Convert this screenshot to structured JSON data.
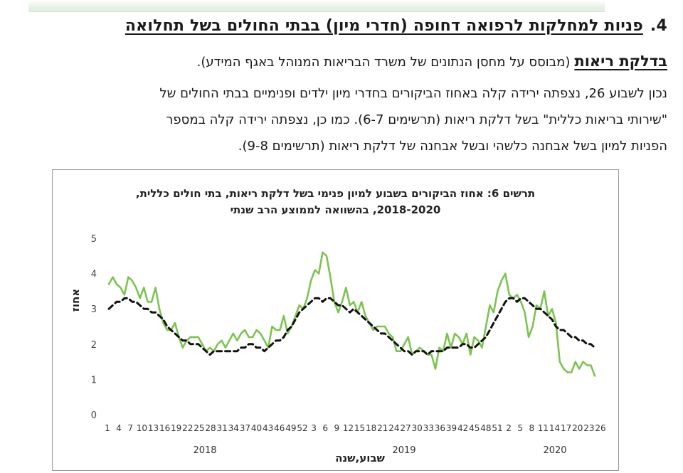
{
  "document": {
    "section_number": "4.",
    "section_title": "פניות למחלקות לרפואה דחופה (חדרי מיון) בבתי החולים בשל תחלואה",
    "section_title_cont": "בדלקת ריאות",
    "source_note": "(מבוסס על מחסן הנתונים של משרד הבריאות המנוהל באגף המידע).",
    "paragraph_lines": [
      "נכון לשבוע 26, נצפתה ירידה קלה באחוז הביקורים בחדרי מיון ילדים ופנימיים בבתי החולים של",
      "\"שירותי בריאות כללית\" בשל דלקת ריאות (תרשימים 6-7). כמו כן, נצפתה ירידה קלה במספר",
      "הפניות למיון בשל אבחנה כלשהי ובשל אבחנה של  דלקת ריאות (תרשימים  9-8)."
    ]
  },
  "chart_data": {
    "type": "line",
    "title_lines": [
      "תרשים 6: אחוז הביקורים בשבוע למיון פנימי בשל דלקת ריאות, בתי חולים כללית,",
      "2018-2020, בהשוואה לממוצע הרב שנתי"
    ],
    "xlabel": "שבוע,שנה",
    "ylabel": "אחוז",
    "ylim": [
      0,
      5
    ],
    "yticks": [
      0,
      1,
      2,
      3,
      4,
      5
    ],
    "grid": false,
    "x_tick_labels": [
      "1",
      "4",
      "7",
      "10",
      "13",
      "16",
      "19",
      "22",
      "25",
      "28",
      "31",
      "34",
      "37",
      "40",
      "43",
      "46",
      "49",
      "52",
      "3",
      "6",
      "9",
      "12",
      "15",
      "18",
      "21",
      "24",
      "27",
      "30",
      "33",
      "36",
      "39",
      "42",
      "45",
      "48",
      "51",
      "2",
      "5",
      "8",
      "11",
      "14",
      "17",
      "20",
      "23",
      "26"
    ],
    "year_labels": [
      "2018",
      "2019",
      "2020"
    ],
    "series": [
      {
        "color": "#7cc44f",
        "style": "solid",
        "values": [
          3.7,
          3.9,
          3.7,
          3.6,
          3.4,
          3.9,
          3.8,
          3.6,
          3.3,
          3.6,
          3.2,
          3.2,
          3.6,
          3.0,
          2.6,
          2.4,
          2.4,
          2.6,
          2.2,
          1.9,
          2.1,
          2.2,
          2.2,
          2.2,
          2.0,
          1.8,
          1.9,
          1.8,
          2.0,
          2.1,
          1.9,
          2.1,
          2.3,
          2.1,
          2.3,
          2.4,
          2.2,
          2.2,
          2.4,
          2.3,
          2.1,
          1.9,
          2.5,
          2.4,
          2.4,
          2.8,
          2.3,
          2.5,
          2.8,
          3.1,
          3.0,
          3.3,
          3.8,
          4.1,
          4.0,
          4.6,
          4.5,
          3.9,
          3.2,
          2.9,
          3.2,
          3.6,
          3.1,
          3.2,
          2.9,
          3.2,
          2.8,
          2.6,
          2.4,
          2.5,
          2.5,
          2.5,
          2.3,
          2.2,
          1.8,
          1.8,
          2.0,
          2.2,
          1.7,
          1.8,
          1.9,
          1.8,
          1.7,
          1.7,
          1.3,
          1.9,
          1.8,
          2.3,
          1.9,
          2.3,
          2.2,
          2.0,
          2.3,
          1.7,
          2.2,
          2.1,
          1.9,
          2.5,
          3.1,
          2.9,
          3.5,
          3.8,
          4.0,
          3.4,
          3.3,
          3.4,
          3.2,
          2.9,
          2.2,
          2.5,
          3.1,
          3.0,
          3.5,
          2.8,
          3.0,
          2.6,
          1.5,
          1.3,
          1.2,
          1.2,
          1.5,
          1.3,
          1.5,
          1.4,
          1.4,
          1.1
        ]
      },
      {
        "color": "#111111",
        "style": "dashed",
        "values": [
          3.0,
          3.1,
          3.2,
          3.2,
          3.3,
          3.3,
          3.2,
          3.2,
          3.1,
          3.0,
          3.0,
          2.9,
          2.9,
          2.8,
          2.7,
          2.5,
          2.4,
          2.3,
          2.2,
          2.1,
          2.1,
          2.0,
          2.0,
          2.0,
          1.9,
          1.8,
          1.7,
          1.8,
          1.8,
          1.8,
          1.8,
          1.8,
          1.8,
          1.8,
          1.9,
          1.9,
          2.0,
          2.0,
          1.9,
          1.9,
          1.8,
          1.9,
          2.0,
          2.1,
          2.1,
          2.2,
          2.4,
          2.5,
          2.7,
          2.9,
          3.0,
          3.1,
          3.2,
          3.3,
          3.3,
          3.2,
          3.3,
          3.3,
          3.2,
          3.1,
          3.1,
          3.0,
          2.9,
          3.0,
          2.9,
          2.8,
          2.7,
          2.6,
          2.5,
          2.4,
          2.3,
          2.3,
          2.2,
          2.1,
          2.0,
          1.9,
          1.8,
          1.8,
          1.7,
          1.8,
          1.8,
          1.8,
          1.7,
          1.8,
          1.8,
          1.8,
          1.8,
          1.9,
          1.9,
          1.9,
          1.9,
          2.0,
          2.0,
          1.9,
          1.9,
          2.0,
          2.1,
          2.2,
          2.4,
          2.6,
          2.8,
          3.0,
          3.2,
          3.3,
          3.3,
          3.2,
          3.3,
          3.3,
          3.2,
          3.1,
          3.0,
          3.0,
          2.9,
          2.8,
          2.7,
          2.5,
          2.4,
          2.4,
          2.3,
          2.2,
          2.2,
          2.1,
          2.1,
          2.0,
          2.0,
          1.9
        ]
      }
    ]
  }
}
